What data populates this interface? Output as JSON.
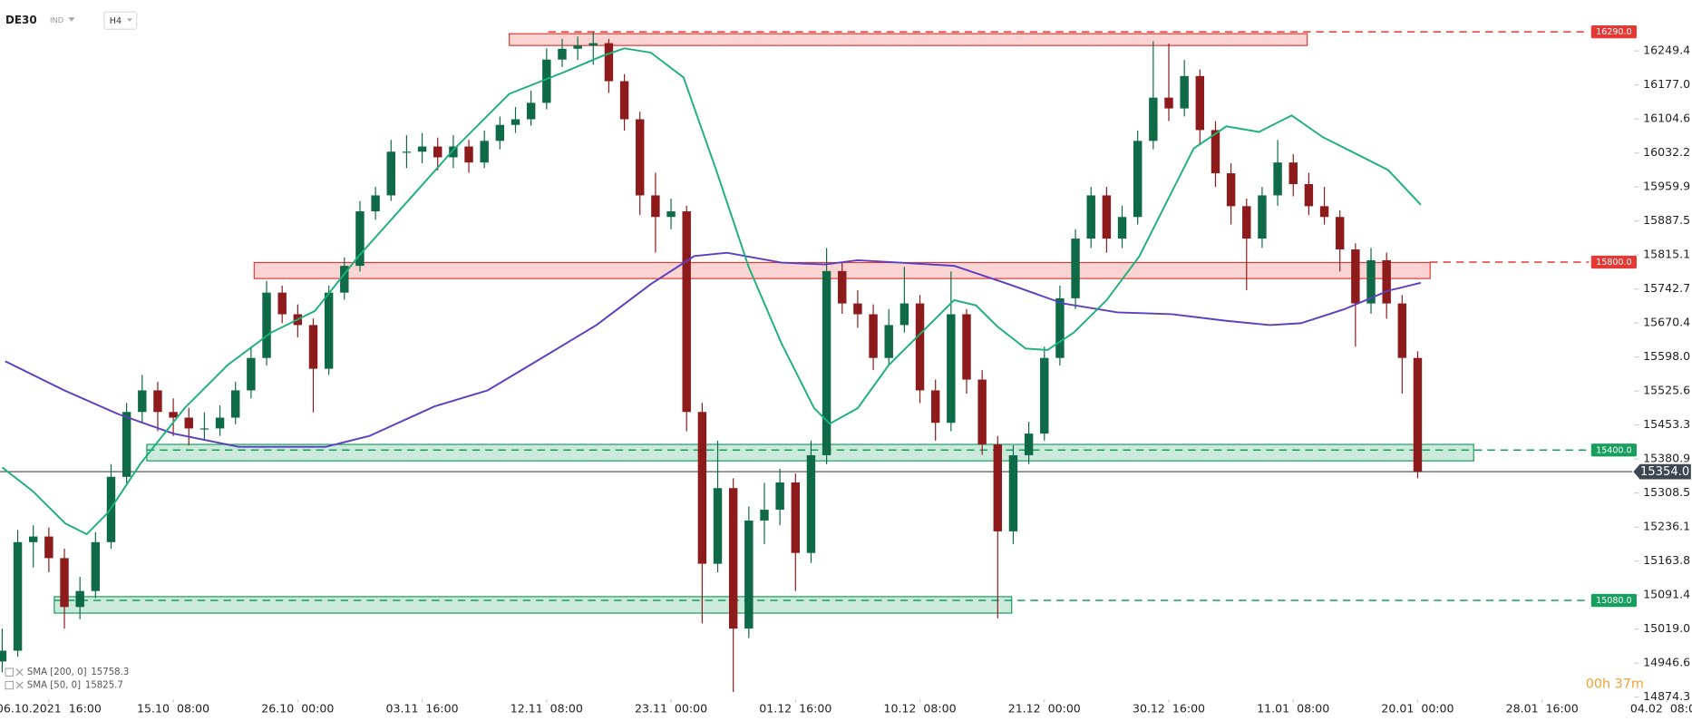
{
  "header": {
    "symbol": "DE30",
    "kind": "IND",
    "interval": "H4"
  },
  "timer": "00h 37m",
  "chart_data": {
    "type": "candlestick",
    "up_color": "#0f6b47",
    "down_color": "#8e1b1b",
    "x": [
      0,
      1,
      2,
      3,
      4,
      5,
      6,
      7,
      8,
      9,
      10,
      11,
      12,
      13,
      14,
      15,
      16,
      17,
      18,
      19,
      20,
      21,
      22,
      23,
      24,
      25,
      26,
      27,
      28,
      29,
      30,
      31,
      32,
      33,
      34,
      35,
      36,
      37,
      38,
      39,
      40,
      41,
      42,
      43,
      44,
      45,
      46,
      47,
      48,
      49,
      50,
      51,
      52,
      53,
      54,
      55,
      56,
      57,
      58,
      59,
      60,
      61,
      62,
      63,
      64,
      65,
      66,
      67,
      68,
      69,
      70,
      71,
      72,
      73,
      74,
      75,
      76,
      77,
      78,
      79,
      80,
      81,
      82,
      83,
      84,
      85,
      86,
      87,
      88,
      89,
      90,
      91
    ],
    "open": [
      14950,
      14973,
      15204,
      15216,
      15170,
      15066,
      15100,
      15204,
      15343,
      15481,
      15527,
      15481,
      15469,
      15446,
      15446,
      15469,
      15527,
      15596,
      15735,
      15689,
      15666,
      15573,
      15735,
      15792,
      15908,
      15942,
      16035,
      16035,
      16046,
      16023,
      16046,
      16012,
      16058,
      16092,
      16104,
      16139,
      16231,
      16254,
      16261,
      16266,
      16185,
      16104,
      15942,
      15896,
      15908,
      15481,
      15158,
      15319,
      15020,
      15250,
      15273,
      15331,
      15181,
      15389,
      15781,
      15712,
      15689,
      15596,
      15666,
      15712,
      15527,
      15458,
      15689,
      15550,
      15412,
      15227,
      15389,
      15435,
      15596,
      15723,
      15850,
      15942,
      15850,
      15896,
      16058,
      16150,
      16127,
      16196,
      16081,
      15989,
      15919,
      15850,
      15942,
      16012,
      15966,
      15919,
      15896,
      15827,
      15712,
      15804,
      15712,
      15596
    ],
    "high": [
      15020,
      15230,
      15240,
      15235,
      15190,
      15130,
      15225,
      15370,
      15500,
      15560,
      15545,
      15510,
      15490,
      15480,
      15495,
      15545,
      15620,
      15760,
      15750,
      15710,
      15680,
      15750,
      15810,
      15930,
      15960,
      16060,
      16070,
      16075,
      16065,
      16070,
      16060,
      16080,
      16110,
      16130,
      16165,
      16255,
      16275,
      16280,
      16290,
      16275,
      16200,
      16120,
      15990,
      15935,
      15920,
      15500,
      15420,
      15340,
      15280,
      15330,
      15360,
      15350,
      15420,
      15830,
      15800,
      15740,
      15710,
      15700,
      15790,
      15730,
      15550,
      15780,
      15700,
      15570,
      15430,
      15410,
      15460,
      15620,
      15750,
      15870,
      15960,
      15960,
      15920,
      16080,
      16270,
      16265,
      16230,
      16210,
      16100,
      16010,
      15935,
      15960,
      16060,
      16030,
      15990,
      15960,
      15910,
      15840,
      15830,
      15820,
      15730,
      15610
    ],
    "low": [
      14927,
      14960,
      15150,
      15140,
      15020,
      15040,
      15085,
      15190,
      15330,
      15460,
      15440,
      15430,
      15410,
      15420,
      15430,
      15455,
      15510,
      15580,
      15670,
      15640,
      15480,
      15560,
      15720,
      15780,
      15890,
      15930,
      16000,
      16010,
      15995,
      16000,
      15990,
      16000,
      16040,
      16075,
      16090,
      16125,
      16215,
      16230,
      16220,
      16160,
      16080,
      15900,
      15820,
      15870,
      15440,
      15031,
      15140,
      14885,
      15000,
      15200,
      15240,
      15100,
      15160,
      15370,
      15690,
      15660,
      15570,
      15580,
      15650,
      15500,
      15420,
      15440,
      15520,
      15390,
      15042,
      15200,
      15370,
      15420,
      15580,
      15700,
      15830,
      15820,
      15830,
      15880,
      16040,
      16100,
      16110,
      16050,
      15960,
      15880,
      15740,
      15830,
      15920,
      15940,
      15900,
      15880,
      15780,
      15620,
      15690,
      15680,
      15520,
      15340
    ],
    "close": [
      14973,
      15204,
      15216,
      15170,
      15066,
      15100,
      15204,
      15343,
      15481,
      15527,
      15481,
      15469,
      15446,
      15446,
      15469,
      15527,
      15596,
      15735,
      15689,
      15666,
      15573,
      15735,
      15792,
      15908,
      15942,
      16035,
      16035,
      16046,
      16023,
      16046,
      16012,
      16058,
      16092,
      16104,
      16139,
      16231,
      16254,
      16261,
      16266,
      16185,
      16104,
      15942,
      15896,
      15908,
      15481,
      15158,
      15319,
      15020,
      15250,
      15273,
      15331,
      15181,
      15389,
      15781,
      15712,
      15689,
      15596,
      15666,
      15712,
      15527,
      15458,
      15689,
      15550,
      15412,
      15227,
      15389,
      15435,
      15596,
      15723,
      15850,
      15942,
      15850,
      15896,
      16058,
      16150,
      16127,
      16196,
      16081,
      15989,
      15919,
      15850,
      15942,
      16012,
      15966,
      15919,
      15896,
      15827,
      15712,
      15804,
      15712,
      15596,
      15354
    ],
    "series": [
      {
        "name": "SMA [200, 0]",
        "last": 15758.3,
        "color": "#5a3fc0",
        "x": [
          0.2,
          4,
          7.5,
          11,
          15.2,
          20.8,
          23.6,
          27.8,
          31.2,
          34.7,
          38.2,
          41.7,
          44.5,
          46.6,
          50.1,
          52.9,
          55,
          57.7,
          61.2,
          64.7,
          68.2,
          71.7,
          75.2,
          78.7,
          81.5,
          83.5,
          86.3,
          89.1,
          91.2
        ],
        "values": [
          15589,
          15527,
          15476,
          15435,
          15407,
          15407,
          15430,
          15493,
          15527,
          15596,
          15666,
          15753,
          15813,
          15820,
          15799,
          15795,
          15804,
          15799,
          15792,
          15753,
          15712,
          15693,
          15689,
          15675,
          15666,
          15670,
          15700,
          15739,
          15756
        ]
      },
      {
        "name": "SMA [50, 0]",
        "last": 15825.7,
        "color": "#1bb07c",
        "x": [
          0,
          1.95,
          4.05,
          5.44,
          6.83,
          8.93,
          11.72,
          14.5,
          17.3,
          20.1,
          22.9,
          25.7,
          29.1,
          32.6,
          36.1,
          38.6,
          40,
          41.7,
          43.8,
          45.9,
          48,
          50.1,
          52.2,
          53.2,
          55,
          57,
          59.8,
          61.2,
          62.6,
          64,
          65.8,
          67.2,
          68.9,
          71,
          73.1,
          75.2,
          76.6,
          78.7,
          80.8,
          82.9,
          84.9,
          87,
          89.1,
          91.2
        ],
        "values": [
          15363,
          15313,
          15244,
          15221,
          15268,
          15373,
          15489,
          15581,
          15650,
          15696,
          15812,
          15916,
          16042,
          16158,
          16204,
          16239,
          16255,
          16246,
          16193,
          15996,
          15789,
          15627,
          15489,
          15456,
          15489,
          15581,
          15673,
          15719,
          15708,
          15662,
          15616,
          15613,
          15650,
          15719,
          15812,
          15950,
          16042,
          16089,
          16077,
          16112,
          16066,
          16031,
          15996,
          15922
        ]
      }
    ],
    "levels": [
      {
        "value": 16290,
        "label": "16290.0",
        "color": "#e53935",
        "zone_y": [
          16261,
          16286
        ],
        "zone_x": [
          32.6,
          83.9
        ],
        "line_x": 35.1
      },
      {
        "value": 15800,
        "label": "15800.0",
        "color": "#e53935",
        "zone_y": [
          15765,
          15799
        ],
        "zone_x": [
          16.2,
          91.8
        ],
        "line_x": 91.8
      },
      {
        "value": 15400,
        "label": "15400.0",
        "color": "#17a05d",
        "zone_y": [
          15377,
          15412
        ],
        "zone_x": [
          9.3,
          94.6
        ],
        "line_x": 9.3
      },
      {
        "value": 15080,
        "label": "15080.0",
        "color": "#17a05d",
        "zone_y": [
          15053,
          15088
        ],
        "zone_x": [
          3.35,
          64.9
        ],
        "line_x": 3.35
      }
    ],
    "last": {
      "value": 15354,
      "label": "15354.0"
    },
    "xlim": [
      -0.14,
      104.8
    ],
    "ylim": [
      14869.5,
      16357.8
    ],
    "yticks": [
      16249.4,
      {
        "value": 16177,
        "label": "16177.0"
      },
      16104.6,
      16032.2,
      15959.9,
      15887.5,
      15815.1,
      15742.7,
      15670.4,
      {
        "value": 15598,
        "label": "15598.0"
      },
      15525.6,
      15453.3,
      15380.9,
      15308.5,
      15236.1,
      15163.8,
      15091.4,
      {
        "value": 15019,
        "label": "15019.0"
      },
      14946.6,
      14874.3
    ],
    "xticks": [
      {
        "value": 3,
        "label": "06.10.2021  16:00"
      },
      {
        "value": 11,
        "label": "15.10  08:00"
      },
      {
        "value": 19,
        "label": "26.10  00:00"
      },
      {
        "value": 27,
        "label": "03.11  16:00"
      },
      {
        "value": 35,
        "label": "12.11  08:00"
      },
      {
        "value": 43,
        "label": "23.11  00:00"
      },
      {
        "value": 51,
        "label": "01.12  16:00"
      },
      {
        "value": 59,
        "label": "10.12  08:00"
      },
      {
        "value": 67,
        "label": "21.12  00:00"
      },
      {
        "value": 75,
        "label": "30.12  16:00"
      },
      {
        "value": 83,
        "label": "11.01  08:00"
      },
      {
        "value": 91,
        "label": "20.01  00:00"
      },
      {
        "value": 99,
        "label": "28.01  16:00"
      },
      {
        "value": 107,
        "label": "04.02  08:00"
      }
    ]
  }
}
